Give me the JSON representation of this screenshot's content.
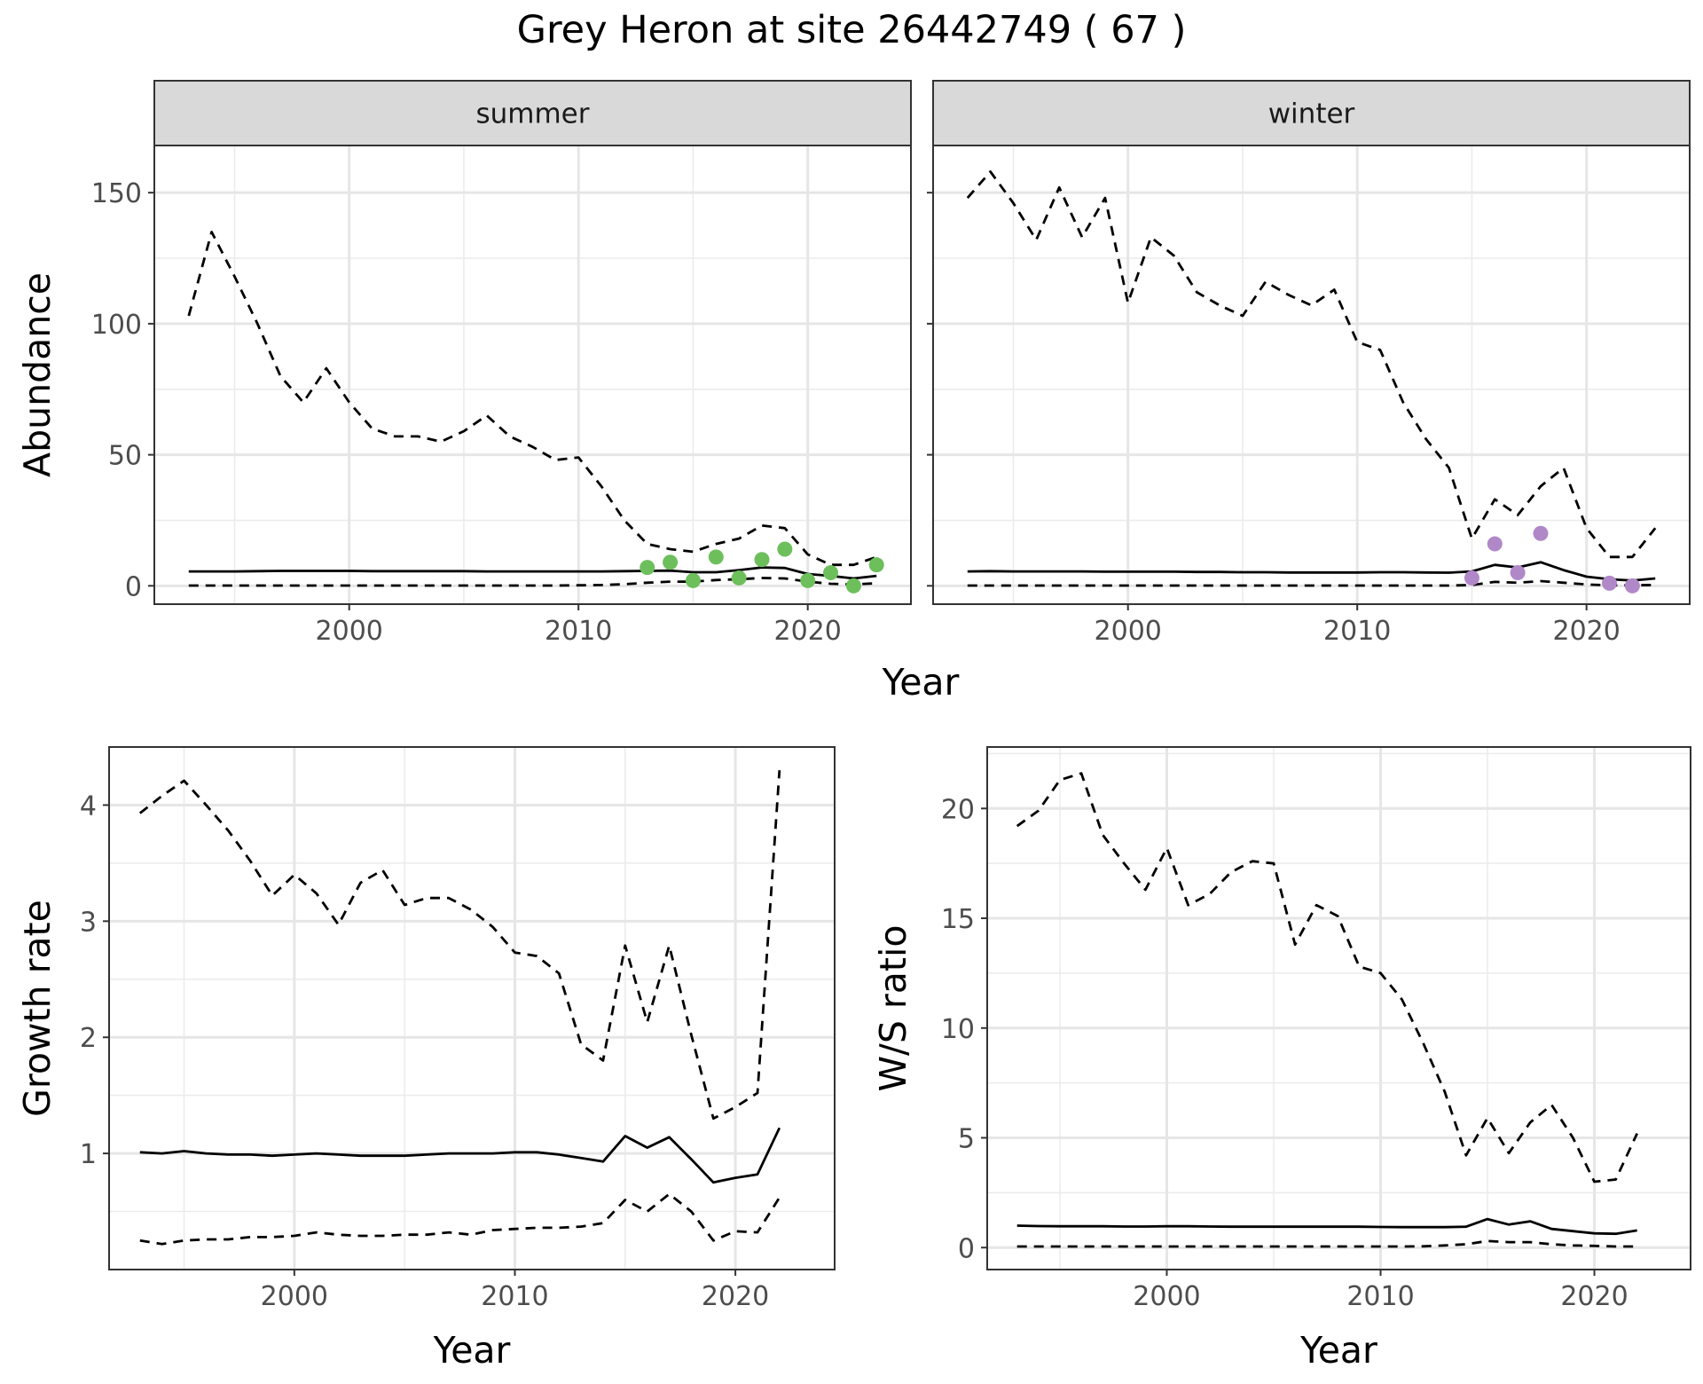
{
  "title": "Grey Heron at site 26442749 ( 67 )",
  "chart_data": [
    {
      "id": "summer",
      "type": "line",
      "strip": "summer",
      "xlabel": "",
      "ylabel": "Abundance",
      "xlim": [
        1991.5,
        2024.5
      ],
      "ylim": [
        -7,
        168
      ],
      "xticks": [
        2000,
        2010,
        2020
      ],
      "yticks": [
        0,
        50,
        100,
        150
      ],
      "grid": true,
      "x": [
        1993,
        1994,
        1995,
        1996,
        1997,
        1998,
        1999,
        2000,
        2001,
        2002,
        2003,
        2004,
        2005,
        2006,
        2007,
        2008,
        2009,
        2010,
        2011,
        2012,
        2013,
        2014,
        2015,
        2016,
        2017,
        2018,
        2019,
        2020,
        2021,
        2022,
        2023
      ],
      "series": [
        {
          "line": "dashed",
          "values": [
            103,
            135,
            118,
            100,
            80,
            70,
            83,
            70,
            60,
            57,
            57,
            55,
            59,
            65,
            57,
            53,
            48,
            49,
            38,
            25,
            16,
            14,
            13,
            16,
            18,
            23,
            22,
            12,
            8,
            8,
            11
          ]
        },
        {
          "line": "solid",
          "values": [
            5.5,
            5.5,
            5.5,
            5.6,
            5.7,
            5.7,
            5.7,
            5.7,
            5.6,
            5.6,
            5.6,
            5.6,
            5.6,
            5.5,
            5.5,
            5.5,
            5.5,
            5.5,
            5.5,
            5.6,
            5.7,
            5.8,
            5.2,
            5.2,
            6.0,
            7.0,
            6.8,
            4.5,
            3.8,
            2.8,
            3.8
          ]
        },
        {
          "line": "dashed",
          "values": [
            0.1,
            0.1,
            0.1,
            0.1,
            0.1,
            0.1,
            0.1,
            0.1,
            0.1,
            0.1,
            0.1,
            0.1,
            0.1,
            0.1,
            0.1,
            0.1,
            0.1,
            0.2,
            0.3,
            0.6,
            1.2,
            1.6,
            1.6,
            2.2,
            2.5,
            3.0,
            2.8,
            1.6,
            0.8,
            0.5,
            1.0
          ]
        }
      ],
      "points": {
        "color": "#6dbf5c",
        "x": [
          2013,
          2014,
          2015,
          2016,
          2017,
          2018,
          2019,
          2020,
          2021,
          2022,
          2023
        ],
        "y": [
          7,
          9,
          2,
          11,
          3,
          10,
          14,
          2,
          5,
          0,
          8
        ]
      }
    },
    {
      "id": "winter",
      "type": "line",
      "strip": "winter",
      "xlabel": "",
      "ylabel": "",
      "xlim": [
        1991.5,
        2024.5
      ],
      "ylim": [
        -7,
        168
      ],
      "xticks": [
        2000,
        2010,
        2020
      ],
      "yticks": [
        0,
        50,
        100,
        150
      ],
      "grid": true,
      "x": [
        1993,
        1994,
        1995,
        1996,
        1997,
        1998,
        1999,
        2000,
        2001,
        2002,
        2003,
        2004,
        2005,
        2006,
        2007,
        2008,
        2009,
        2010,
        2011,
        2012,
        2013,
        2014,
        2015,
        2016,
        2017,
        2018,
        2019,
        2020,
        2021,
        2022,
        2023
      ],
      "series": [
        {
          "line": "dashed",
          "values": [
            148,
            158,
            146,
            132,
            152,
            133,
            148,
            108,
            133,
            126,
            112,
            107,
            103,
            116,
            111,
            107,
            113,
            93,
            90,
            70,
            56,
            45,
            18,
            33,
            27,
            38,
            45,
            22,
            11,
            11,
            22
          ]
        },
        {
          "line": "solid",
          "values": [
            5.5,
            5.6,
            5.5,
            5.5,
            5.5,
            5.5,
            5.4,
            5.4,
            5.4,
            5.4,
            5.3,
            5.3,
            5.2,
            5.2,
            5.1,
            5.1,
            5.1,
            5.1,
            5.2,
            5.2,
            5.1,
            5.0,
            5.5,
            8.0,
            7.0,
            9.0,
            6.0,
            3.5,
            2.5,
            2.0,
            2.8
          ]
        },
        {
          "line": "dashed",
          "values": [
            0.1,
            0.1,
            0.1,
            0.1,
            0.1,
            0.1,
            0.1,
            0.1,
            0.1,
            0.1,
            0.1,
            0.1,
            0.1,
            0.1,
            0.1,
            0.1,
            0.1,
            0.1,
            0.1,
            0.1,
            0.1,
            0.1,
            0.3,
            1.5,
            1.2,
            1.8,
            1.2,
            0.5,
            0.2,
            0.2,
            0.3
          ]
        }
      ],
      "points": {
        "color": "#b088c8",
        "x": [
          2015,
          2016,
          2017,
          2018,
          2021,
          2022
        ],
        "y": [
          3,
          16,
          5,
          20,
          1,
          0
        ]
      }
    },
    {
      "id": "growth",
      "type": "line",
      "xlabel": "Year",
      "ylabel": "Growth rate",
      "xlim": [
        1991.6,
        2024.5
      ],
      "ylim": [
        0.0,
        4.5
      ],
      "xticks": [
        2000,
        2010,
        2020
      ],
      "yticks": [
        1,
        2,
        3,
        4
      ],
      "grid": true,
      "x": [
        1993,
        1994,
        1995,
        1996,
        1997,
        1998,
        1999,
        2000,
        2001,
        2002,
        2003,
        2004,
        2005,
        2006,
        2007,
        2008,
        2009,
        2010,
        2011,
        2012,
        2013,
        2014,
        2015,
        2016,
        2017,
        2018,
        2019,
        2020,
        2021,
        2022
      ],
      "series": [
        {
          "line": "dashed",
          "values": [
            3.93,
            4.08,
            4.21,
            4.0,
            3.78,
            3.52,
            3.22,
            3.4,
            3.24,
            2.97,
            3.33,
            3.44,
            3.14,
            3.2,
            3.2,
            3.1,
            2.95,
            2.73,
            2.7,
            2.55,
            1.94,
            1.8,
            2.79,
            2.13,
            2.79,
            2.02,
            1.3,
            1.4,
            1.52,
            4.3
          ]
        },
        {
          "line": "solid",
          "values": [
            1.01,
            1.0,
            1.02,
            1.0,
            0.99,
            0.99,
            0.98,
            0.99,
            1.0,
            0.99,
            0.98,
            0.98,
            0.98,
            0.99,
            1.0,
            1.0,
            1.0,
            1.01,
            1.01,
            0.99,
            0.96,
            0.93,
            1.15,
            1.05,
            1.14,
            0.95,
            0.75,
            0.79,
            0.82,
            1.22
          ]
        },
        {
          "line": "dashed",
          "values": [
            0.25,
            0.22,
            0.25,
            0.26,
            0.26,
            0.28,
            0.28,
            0.29,
            0.32,
            0.3,
            0.29,
            0.29,
            0.3,
            0.3,
            0.32,
            0.3,
            0.34,
            0.35,
            0.36,
            0.36,
            0.37,
            0.4,
            0.6,
            0.5,
            0.65,
            0.5,
            0.25,
            0.33,
            0.32,
            0.62
          ]
        }
      ]
    },
    {
      "id": "ratio",
      "type": "line",
      "xlabel": "Year",
      "ylabel": "W/S ratio",
      "xlim": [
        1991.6,
        2024.5
      ],
      "ylim": [
        -1.0,
        22.8
      ],
      "xticks": [
        2000,
        2010,
        2020
      ],
      "yticks": [
        0,
        5,
        10,
        15,
        20
      ],
      "grid": true,
      "x": [
        1993,
        1994,
        1995,
        1996,
        1997,
        1998,
        1999,
        2000,
        2001,
        2002,
        2003,
        2004,
        2005,
        2006,
        2007,
        2008,
        2009,
        2010,
        2011,
        2012,
        2013,
        2014,
        2015,
        2016,
        2017,
        2018,
        2019,
        2020,
        2021,
        2022
      ],
      "series": [
        {
          "line": "dashed",
          "values": [
            19.2,
            19.9,
            21.3,
            21.6,
            18.8,
            17.5,
            16.3,
            18.2,
            15.6,
            16.1,
            17.1,
            17.6,
            17.5,
            13.8,
            15.6,
            15.1,
            12.8,
            12.5,
            11.3,
            9.3,
            7.1,
            4.2,
            5.9,
            4.3,
            5.7,
            6.5,
            5.0,
            3.0,
            3.1,
            5.2
          ]
        },
        {
          "line": "solid",
          "values": [
            1.0,
            0.98,
            0.97,
            0.97,
            0.97,
            0.96,
            0.96,
            0.97,
            0.97,
            0.96,
            0.95,
            0.95,
            0.95,
            0.95,
            0.95,
            0.95,
            0.95,
            0.94,
            0.93,
            0.93,
            0.93,
            0.95,
            1.3,
            1.05,
            1.2,
            0.85,
            0.75,
            0.65,
            0.63,
            0.78
          ]
        },
        {
          "line": "dashed",
          "values": [
            0.05,
            0.05,
            0.05,
            0.05,
            0.05,
            0.05,
            0.05,
            0.05,
            0.05,
            0.05,
            0.05,
            0.05,
            0.05,
            0.05,
            0.05,
            0.05,
            0.05,
            0.05,
            0.05,
            0.06,
            0.1,
            0.15,
            0.3,
            0.25,
            0.25,
            0.15,
            0.1,
            0.08,
            0.05,
            0.05
          ]
        }
      ]
    }
  ],
  "shared_xlabel_top": "Year"
}
